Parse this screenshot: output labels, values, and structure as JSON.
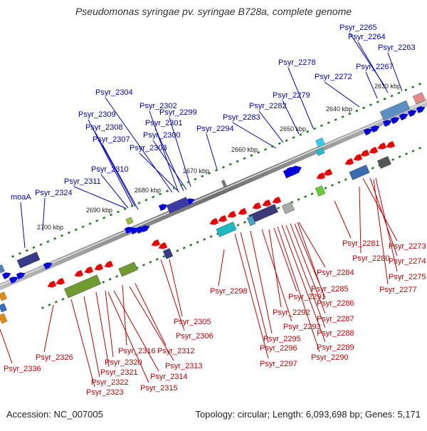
{
  "title": "Pseudomonas syringae pv. syringae B728a, complete genome",
  "footer": {
    "accession": "Accession: NC_007005",
    "topology": "Topology: circular; Length: 6,093,698 bp; Genes: 5,171"
  },
  "colors": {
    "forward_gene": "#0000dd",
    "reverse_gene": "#ee0000",
    "forward_label": "#0000cc",
    "reverse_label": "#cc0000",
    "backbone": "#8a8a8a",
    "tick": "#1e7d1e"
  },
  "scale_ticks": [
    "2630 kbp",
    "2640 kbp",
    "2650 kbp",
    "2660 kbp",
    "2670 kbp",
    "2680 kbp",
    "2690 kbp",
    "2700 kbp"
  ],
  "forward_labels": [
    "Psyr_2265",
    "Psyr_2264",
    "Psyr_2263",
    "Psyr_2267",
    "Psyr_2272",
    "Psyr_2278",
    "Psyr_2279",
    "Psyr_2282",
    "Psyr_2283",
    "Psyr_2304",
    "Psyr_2302",
    "Psyr_2301",
    "Psyr_2299",
    "Psyr_2309",
    "Psyr_2308",
    "Psyr_2300",
    "Psyr_2307",
    "Psyr_2294",
    "Psyr_2303",
    "Psyr_2310",
    "Psyr_2311",
    "Psyr_2324",
    "moaA"
  ],
  "reverse_labels": [
    "Psyr_2281",
    "Psyr_2273",
    "Psyr_2280",
    "Psyr_2274",
    "Psyr_2275",
    "Psyr_2277",
    "Psyr_2284",
    "Psyr_2285",
    "Psyr_2286",
    "Psyr_2298",
    "Psyr_2291",
    "Psyr_2292",
    "Psyr_2287",
    "Psyr_2293",
    "Psyr_2288",
    "Psyr_2305",
    "Psyr_2295",
    "Psyr_2289",
    "Psyr_2306",
    "Psyr_2296",
    "Psyr_2290",
    "Psyr_2297",
    "Psyr_2316",
    "Psyr_2312",
    "Psyr_2326",
    "Psyr_2320",
    "Psyr_2313",
    "Psyr_2336",
    "Psyr_2321",
    "Psyr_2314",
    "Psyr_2322",
    "Psyr_2315",
    "Psyr_2323"
  ]
}
